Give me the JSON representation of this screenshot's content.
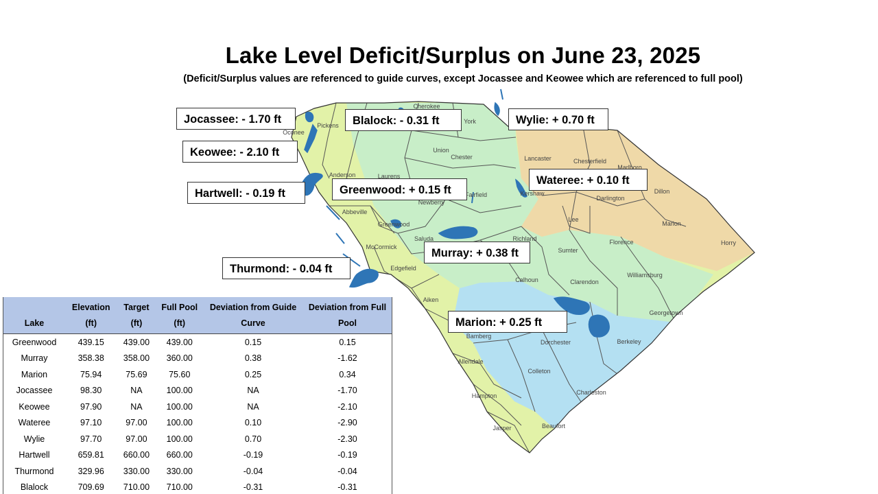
{
  "title": "Lake Level Deficit/Surplus on June 23, 2025",
  "subtitle": "(Deficit/Surplus values are referenced to guide curves, except Jocassee and Keowee which are referenced to full pool)",
  "map": {
    "region_colors": {
      "upstate": "#e2f2a8",
      "midlands": "#c8eec8",
      "pee_dee": "#efd9a8",
      "lowcountry": "#b4e0f2",
      "water": "#2e75b6",
      "border": "#555555"
    },
    "counties": [
      {
        "name": "Oconee"
      },
      {
        "name": "Pickens"
      },
      {
        "name": "Cherokee"
      },
      {
        "name": "York"
      },
      {
        "name": "Union"
      },
      {
        "name": "Chester"
      },
      {
        "name": "Lancaster"
      },
      {
        "name": "Chesterfield"
      },
      {
        "name": "Marlboro"
      },
      {
        "name": "Anderson"
      },
      {
        "name": "Laurens"
      },
      {
        "name": "Newberry"
      },
      {
        "name": "Fairfield"
      },
      {
        "name": "Kershaw"
      },
      {
        "name": "Darlington"
      },
      {
        "name": "Dillon"
      },
      {
        "name": "Abbeville"
      },
      {
        "name": "Greenwood"
      },
      {
        "name": "Lee"
      },
      {
        "name": "Marion"
      },
      {
        "name": "Horry"
      },
      {
        "name": "McCormick"
      },
      {
        "name": "Saluda"
      },
      {
        "name": "Richland"
      },
      {
        "name": "Sumter"
      },
      {
        "name": "Florence"
      },
      {
        "name": "Edgefield"
      },
      {
        "name": "Calhoun"
      },
      {
        "name": "Clarendon"
      },
      {
        "name": "Williamsburg"
      },
      {
        "name": "Aiken"
      },
      {
        "name": "Georgetown"
      },
      {
        "name": "Bamberg"
      },
      {
        "name": "Dorchester"
      },
      {
        "name": "Berkeley"
      },
      {
        "name": "Allendale"
      },
      {
        "name": "Colleton"
      },
      {
        "name": "Charleston"
      },
      {
        "name": "Hampton"
      },
      {
        "name": "Jasper"
      },
      {
        "name": "Beaufort"
      }
    ]
  },
  "callouts": [
    {
      "id": "jocassee",
      "text": "Jocassee: - 1.70 ft"
    },
    {
      "id": "blalock",
      "text": "Blalock: - 0.31 ft"
    },
    {
      "id": "wylie",
      "text": "Wylie: + 0.70 ft"
    },
    {
      "id": "keowee",
      "text": "Keowee: - 2.10 ft"
    },
    {
      "id": "hartwell",
      "text": "Hartwell: - 0.19 ft"
    },
    {
      "id": "greenwood",
      "text": "Greenwood: + 0.15 ft"
    },
    {
      "id": "wateree",
      "text": "Wateree: + 0.10 ft"
    },
    {
      "id": "murray",
      "text": "Murray: + 0.38 ft"
    },
    {
      "id": "thurmond",
      "text": "Thurmond: - 0.04 ft"
    },
    {
      "id": "marion",
      "text": "Marion: + 0.25 ft"
    }
  ],
  "table": {
    "columns": [
      "Lake",
      "Elevation (ft)",
      "Target (ft)",
      "Full Pool (ft)",
      "Deviation from Guide Curve",
      "Deviation from Full Pool"
    ],
    "rows": [
      [
        "Greenwood",
        "439.15",
        "439.00",
        "439.00",
        "0.15",
        "0.15"
      ],
      [
        "Murray",
        "358.38",
        "358.00",
        "360.00",
        "0.38",
        "-1.62"
      ],
      [
        "Marion",
        "75.94",
        "75.69",
        "75.60",
        "0.25",
        "0.34"
      ],
      [
        "Jocassee",
        "98.30",
        "NA",
        "100.00",
        "NA",
        "-1.70"
      ],
      [
        "Keowee",
        "97.90",
        "NA",
        "100.00",
        "NA",
        "-2.10"
      ],
      [
        "Wateree",
        "97.10",
        "97.00",
        "100.00",
        "0.10",
        "-2.90"
      ],
      [
        "Wylie",
        "97.70",
        "97.00",
        "100.00",
        "0.70",
        "-2.30"
      ],
      [
        "Hartwell",
        "659.81",
        "660.00",
        "660.00",
        "-0.19",
        "-0.19"
      ],
      [
        "Thurmond",
        "329.96",
        "330.00",
        "330.00",
        "-0.04",
        "-0.04"
      ],
      [
        "Blalock",
        "709.69",
        "710.00",
        "710.00",
        "-0.31",
        "-0.31"
      ]
    ]
  }
}
